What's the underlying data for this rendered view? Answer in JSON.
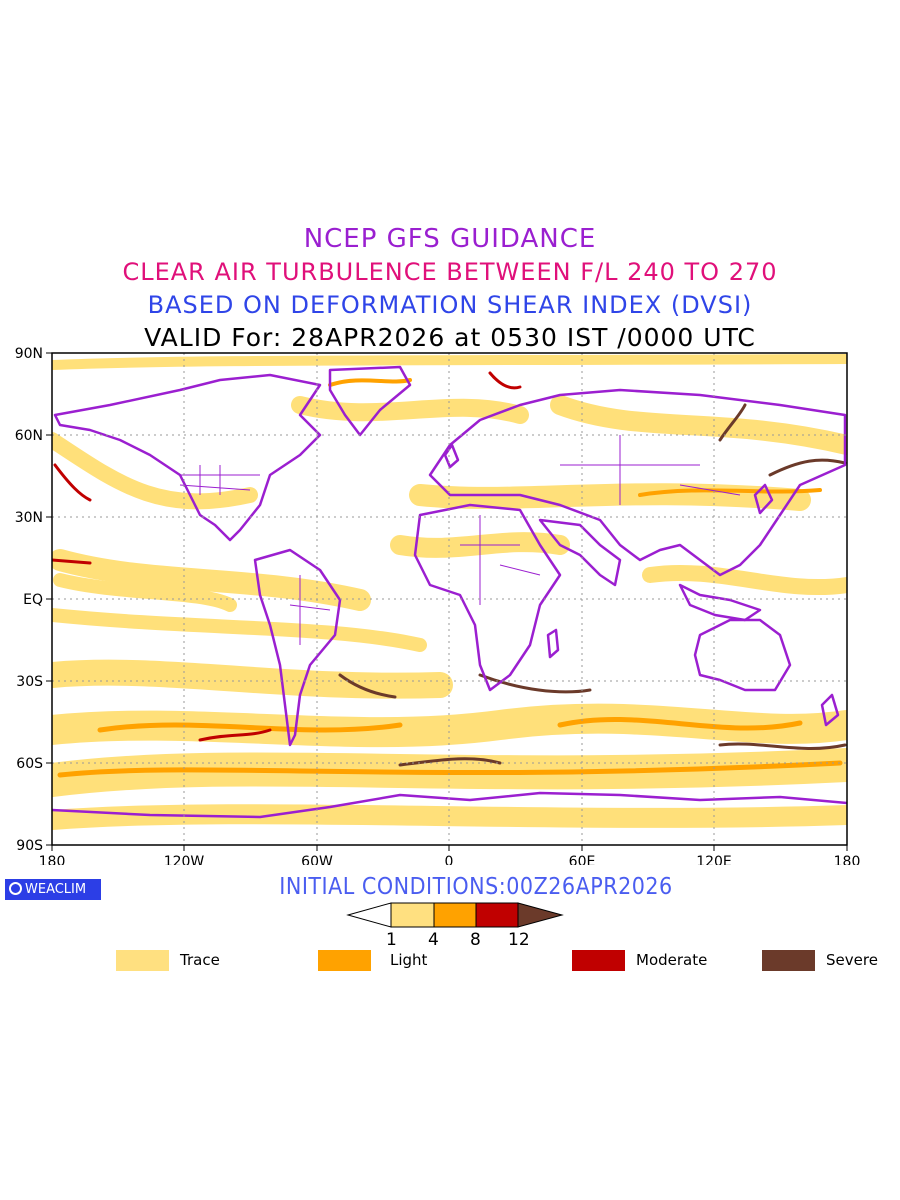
{
  "header": {
    "line1": "NCEP GFS GUIDANCE",
    "line2": "CLEAR AIR TURBULENCE BETWEEN F/L 240 TO 270",
    "line3": "BASED ON DEFORMATION SHEAR INDEX (DVSI)",
    "line4": "VALID For: 28APR2026 at 0530 IST /0000 UTC"
  },
  "map": {
    "lat_labels": [
      "90N",
      "60N",
      "30N",
      "EQ",
      "30S",
      "60S",
      "90S"
    ],
    "lon_labels": [
      "180",
      "120W",
      "60W",
      "0",
      "60E",
      "120E",
      "180"
    ],
    "colors": {
      "coast": "#9b1fd0",
      "trace": "#ffe07a",
      "light": "#ffa200",
      "moderate": "#c00000",
      "severe": "#6b3a2a"
    }
  },
  "footer": {
    "brand": "WEACLIM",
    "initial": "INITIAL CONDITIONS:00Z26APR2026"
  },
  "colorbar": {
    "ticks": [
      "1",
      "4",
      "8",
      "12"
    ],
    "colors": [
      "#ffffff",
      "#ffe080",
      "#ffa200",
      "#c00000",
      "#6b3a2a"
    ]
  },
  "legend": [
    {
      "label": "Trace",
      "color": "#ffe080"
    },
    {
      "label": "Light",
      "color": "#ffa200"
    },
    {
      "label": "Moderate",
      "color": "#c00000"
    },
    {
      "label": "Severe",
      "color": "#6b3a2a"
    }
  ]
}
